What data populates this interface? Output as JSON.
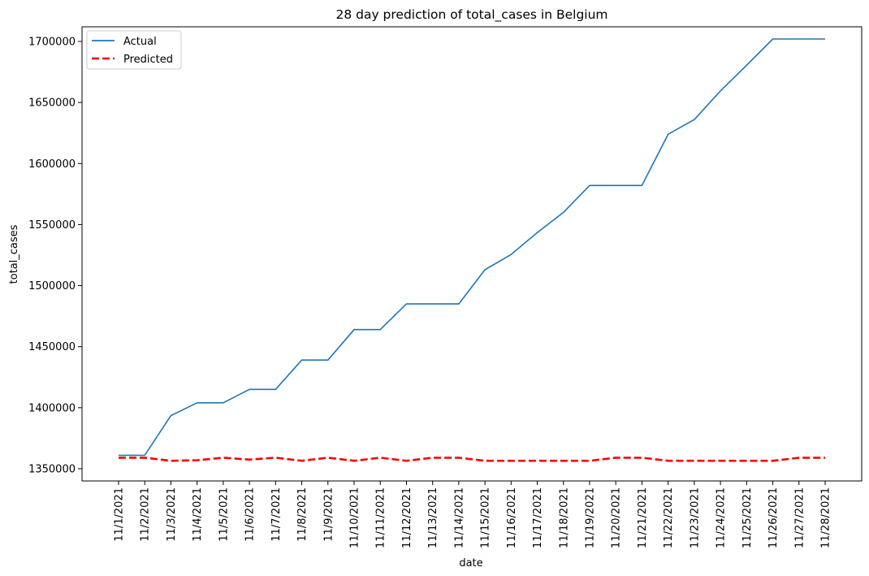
{
  "chart_data": {
    "type": "line",
    "title": "28 day prediction of total_cases in Belgium",
    "xlabel": "date",
    "ylabel": "total_cases",
    "categories": [
      "11/1/2021",
      "11/2/2021",
      "11/3/2021",
      "11/4/2021",
      "11/5/2021",
      "11/6/2021",
      "11/7/2021",
      "11/8/2021",
      "11/9/2021",
      "11/10/2021",
      "11/11/2021",
      "11/12/2021",
      "11/13/2021",
      "11/14/2021",
      "11/15/2021",
      "11/16/2021",
      "11/17/2021",
      "11/18/2021",
      "11/19/2021",
      "11/20/2021",
      "11/21/2021",
      "11/22/2021",
      "11/23/2021",
      "11/24/2021",
      "11/25/2021",
      "11/26/2021",
      "11/27/2021",
      "11/28/2021"
    ],
    "ylim": [
      1340000,
      1712000
    ],
    "yticks": [
      1350000,
      1400000,
      1450000,
      1500000,
      1550000,
      1600000,
      1650000,
      1700000
    ],
    "ytick_labels": [
      "1350000",
      "1400000",
      "1450000",
      "1500000",
      "1550000",
      "1600000",
      "1650000",
      "1700000"
    ],
    "grid": false,
    "legend_position": "top-left",
    "series": [
      {
        "name": "Actual",
        "color": "#1f77b4",
        "style": "solid",
        "values": [
          1361000,
          1361000,
          1393500,
          1404000,
          1404000,
          1415000,
          1415000,
          1439000,
          1439000,
          1464000,
          1464000,
          1485000,
          1485000,
          1485000,
          1513000,
          1525500,
          1543500,
          1560000,
          1582000,
          1582000,
          1582000,
          1624000,
          1636000,
          1659500,
          1680500,
          1702000,
          1702000,
          1702000
        ]
      },
      {
        "name": "Predicted",
        "color": "#ff0000",
        "style": "dashed",
        "values": [
          1359000,
          1359000,
          1356500,
          1357000,
          1359000,
          1357500,
          1359000,
          1356500,
          1359000,
          1356500,
          1359000,
          1356500,
          1359000,
          1359000,
          1356500,
          1356500,
          1356500,
          1356500,
          1356500,
          1359000,
          1359000,
          1356500,
          1356500,
          1356500,
          1356500,
          1356500,
          1359000,
          1359000
        ]
      }
    ]
  }
}
